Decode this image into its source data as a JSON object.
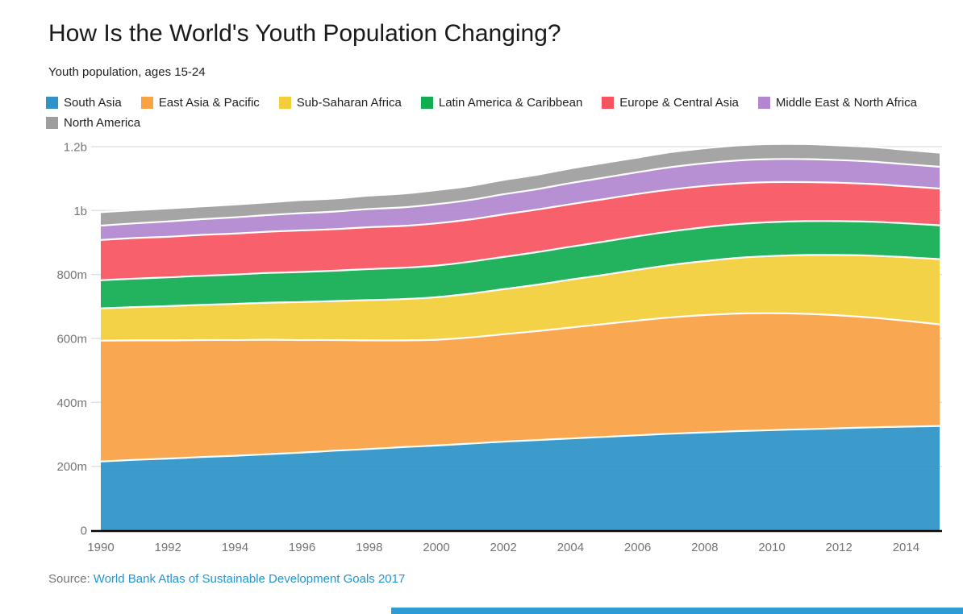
{
  "page": {
    "title": "How Is the World's Youth Population Changing?",
    "subtitle": "Youth population, ages 15-24",
    "source_prefix": "Source:",
    "source_link": "World Bank Atlas of Sustainable Development Goals 2017"
  },
  "colors": {
    "axis_label": "#757575",
    "gridline": "#e2e2e2",
    "axis_line": "#000000",
    "band_separator": "#ffffff",
    "link": "#2196d3",
    "bottom_bar": "#2e9bd6"
  },
  "chart_data": {
    "type": "area",
    "stacked": true,
    "units": "millions of people",
    "title": "How Is the World's Youth Population Changing?",
    "subtitle": "Youth population, ages 15-24",
    "xlabel": "",
    "ylabel": "",
    "grid": true,
    "legend_position": "top",
    "ylim_millions": [
      0,
      1200
    ],
    "y_ticks": [
      {
        "value": 0,
        "label": "0"
      },
      {
        "value": 200,
        "label": "200m"
      },
      {
        "value": 400,
        "label": "400m"
      },
      {
        "value": 600,
        "label": "600m"
      },
      {
        "value": 800,
        "label": "800m"
      },
      {
        "value": 1000,
        "label": "1b"
      },
      {
        "value": 1200,
        "label": "1.2b"
      }
    ],
    "x_tick_years": [
      "1990",
      "1992",
      "1994",
      "1996",
      "1998",
      "2000",
      "2002",
      "2004",
      "2006",
      "2008",
      "2010",
      "2012",
      "2014"
    ],
    "x": [
      1990,
      1991,
      1992,
      1993,
      1994,
      1995,
      1996,
      1997,
      1998,
      1999,
      2000,
      2001,
      2002,
      2003,
      2004,
      2005,
      2006,
      2007,
      2008,
      2009,
      2010,
      2011,
      2012,
      2013,
      2014,
      2015
    ],
    "series": [
      {
        "name": "South Asia",
        "color": "#2e93c7",
        "values": [
          215,
          220,
          224,
          229,
          233,
          238,
          243,
          249,
          254,
          260,
          265,
          271,
          277,
          282,
          287,
          292,
          297,
          302,
          306,
          310,
          313,
          316,
          319,
          322,
          324,
          326
        ]
      },
      {
        "name": "East Asia & Pacific",
        "color": "#f9a144",
        "values": [
          378,
          374,
          370,
          366,
          362,
          358,
          352,
          346,
          340,
          334,
          331,
          332,
          336,
          341,
          347,
          353,
          359,
          364,
          367,
          368,
          366,
          361,
          353,
          343,
          331,
          318
        ]
      },
      {
        "name": "Sub-Saharan Africa",
        "color": "#f2cf3a",
        "values": [
          101,
          104,
          107,
          110,
          113,
          116,
          119,
          122,
          126,
          129,
          133,
          137,
          141,
          145,
          150,
          154,
          159,
          164,
          169,
          174,
          179,
          184,
          189,
          194,
          199,
          204
        ]
      },
      {
        "name": "Latin America & Caribbean",
        "color": "#12ac52",
        "values": [
          88,
          89,
          90,
          91,
          92,
          93,
          94,
          95,
          97,
          98,
          99,
          100,
          101,
          102,
          103,
          104,
          105,
          105,
          106,
          106,
          106,
          106,
          106,
          106,
          106,
          106
        ]
      },
      {
        "name": "Europe & Central Asia",
        "color": "#f85460",
        "values": [
          126,
          127,
          127,
          128,
          128,
          129,
          130,
          130,
          131,
          131,
          132,
          132,
          133,
          133,
          133,
          133,
          132,
          131,
          129,
          127,
          125,
          122,
          120,
          118,
          116,
          115
        ]
      },
      {
        "name": "Middle East & North Africa",
        "color": "#b286d0",
        "values": [
          45,
          46,
          48,
          49,
          51,
          52,
          54,
          55,
          57,
          58,
          60,
          61,
          63,
          64,
          66,
          67,
          68,
          70,
          71,
          72,
          72,
          72,
          71,
          70,
          69,
          68
        ]
      },
      {
        "name": "North America",
        "color": "#9e9e9e",
        "values": [
          42,
          41,
          41,
          40,
          40,
          40,
          41,
          41,
          42,
          43,
          44,
          44,
          45,
          45,
          46,
          46,
          46,
          47,
          47,
          47,
          47,
          47,
          46,
          46,
          45,
          44
        ]
      }
    ]
  }
}
